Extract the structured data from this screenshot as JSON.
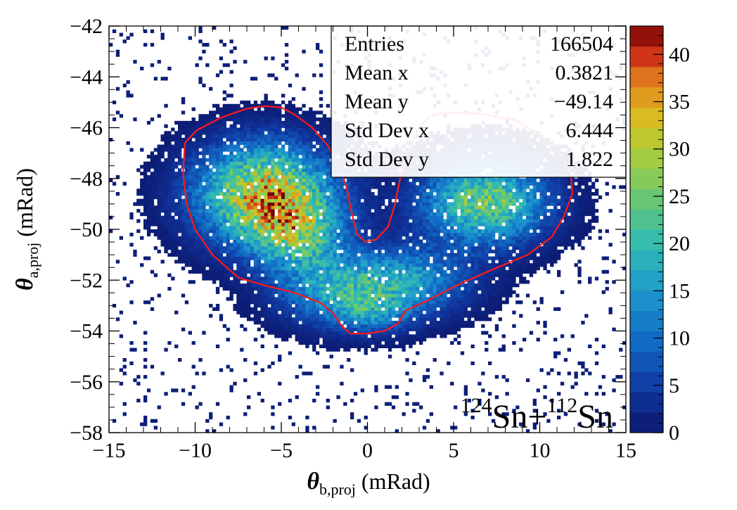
{
  "chart_data": {
    "type": "heatmap",
    "title": "",
    "xlabel": {
      "symbol": "θ",
      "subscript": "b,proj",
      "unit": " (mRad)"
    },
    "ylabel": {
      "symbol": "θ",
      "subscript": "a,proj",
      "unit": " (mRad)"
    },
    "xlim": [
      -15,
      15
    ],
    "ylim": [
      -58,
      -42
    ],
    "x_ticks": [
      -15,
      -10,
      -5,
      0,
      5,
      10,
      15
    ],
    "y_ticks": [
      -58,
      -56,
      -54,
      -52,
      -50,
      -48,
      -46,
      -44,
      -42
    ],
    "x_tick_labels": [
      "−15",
      "−10",
      "−5",
      "0",
      "5",
      "10",
      "15"
    ],
    "y_tick_labels": [
      "−58",
      "−56",
      "−54",
      "−52",
      "−50",
      "−48",
      "−46",
      "−44",
      "−42"
    ],
    "colorbar": {
      "min": 0,
      "max": 43,
      "ticks": [
        0,
        5,
        10,
        15,
        20,
        25,
        30,
        35,
        40
      ],
      "tick_labels": [
        "0",
        "5",
        "10",
        "15",
        "20",
        "25",
        "30",
        "35",
        "40"
      ]
    },
    "stats_box": [
      {
        "label": "Entries",
        "value": "166504"
      },
      {
        "label": "Mean x",
        "value": "0.3821"
      },
      {
        "label": "Mean y",
        "value": "−49.14"
      },
      {
        "label": "Std Dev x",
        "value": "6.444"
      },
      {
        "label": "Std Dev y",
        "value": "1.822"
      }
    ],
    "annotation": {
      "mass_a": "124",
      "element_a": "Sn",
      "plus": "+",
      "mass_b": "112",
      "element_b": "Sn"
    },
    "density_components": [
      {
        "x": -6.0,
        "y": -48.6,
        "sx": 2.6,
        "sy": 1.3,
        "amp": 32
      },
      {
        "x": -4.0,
        "y": -50.2,
        "sx": 1.8,
        "sy": 1.0,
        "amp": 18
      },
      {
        "x": 6.8,
        "y": -48.9,
        "sx": 2.4,
        "sy": 1.1,
        "amp": 25
      },
      {
        "x": -1.5,
        "y": -52.4,
        "sx": 2.4,
        "sy": 0.9,
        "amp": 16
      },
      {
        "x": 2.5,
        "y": -52.0,
        "sx": 2.4,
        "sy": 0.9,
        "amp": 13
      },
      {
        "x": 0.3,
        "y": -53.3,
        "sx": 1.5,
        "sy": 0.5,
        "amp": 8
      }
    ],
    "contour_color": "#ff1a1a",
    "contour": [
      [
        -10.6,
        -46.6
      ],
      [
        -9.9,
        -46.1
      ],
      [
        -8.5,
        -45.6
      ],
      [
        -7.0,
        -45.25
      ],
      [
        -6.0,
        -45.15
      ],
      [
        -5.0,
        -45.2
      ],
      [
        -4.2,
        -45.5
      ],
      [
        -3.2,
        -46.0
      ],
      [
        -2.3,
        -46.7
      ],
      [
        -1.6,
        -47.5
      ],
      [
        -1.2,
        -48.4
      ],
      [
        -0.9,
        -49.4
      ],
      [
        -0.6,
        -50.2
      ],
      [
        -0.1,
        -50.5
      ],
      [
        0.5,
        -50.4
      ],
      [
        1.2,
        -49.9
      ],
      [
        1.6,
        -49.0
      ],
      [
        1.9,
        -48.0
      ],
      [
        2.3,
        -47.0
      ],
      [
        2.9,
        -46.1
      ],
      [
        3.6,
        -45.55
      ],
      [
        4.5,
        -45.4
      ],
      [
        6.5,
        -45.45
      ],
      [
        8.6,
        -45.7
      ],
      [
        10.0,
        -46.3
      ],
      [
        11.1,
        -46.9
      ],
      [
        11.8,
        -47.8
      ],
      [
        11.9,
        -48.6
      ],
      [
        11.4,
        -49.5
      ],
      [
        10.7,
        -50.3
      ],
      [
        9.3,
        -51.0
      ],
      [
        7.2,
        -51.6
      ],
      [
        5.2,
        -52.2
      ],
      [
        3.5,
        -52.8
      ],
      [
        2.2,
        -53.2
      ],
      [
        1.8,
        -53.7
      ],
      [
        1.0,
        -54.0
      ],
      [
        0.0,
        -54.1
      ],
      [
        -1.0,
        -54.1
      ],
      [
        -1.5,
        -53.8
      ],
      [
        -2.0,
        -53.3
      ],
      [
        -2.7,
        -52.9
      ],
      [
        -4.2,
        -52.5
      ],
      [
        -6.0,
        -52.2
      ],
      [
        -7.5,
        -51.9
      ],
      [
        -9.0,
        -51.0
      ],
      [
        -10.0,
        -50.0
      ],
      [
        -10.5,
        -49.0
      ],
      [
        -10.7,
        -47.8
      ],
      [
        -10.6,
        -46.6
      ]
    ]
  }
}
